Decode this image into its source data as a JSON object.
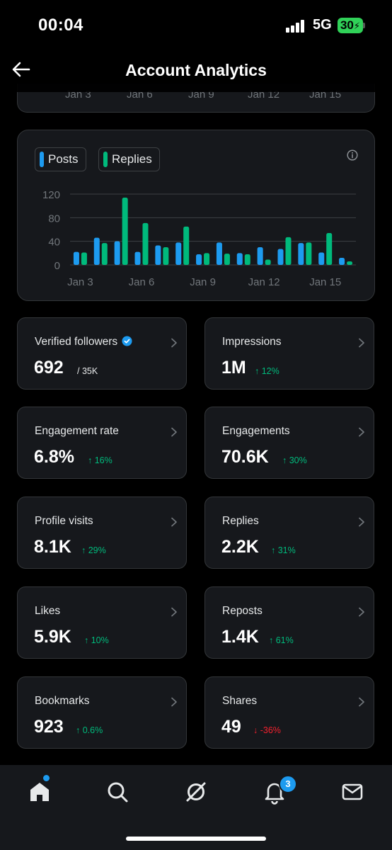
{
  "status_bar": {
    "time": "00:04",
    "network": "5G",
    "battery": "30"
  },
  "header": {
    "title": "Account Analytics"
  },
  "top_chart_axis": [
    "Jan 3",
    "Jan 6",
    "Jan 9",
    "Jan 12",
    "Jan 15"
  ],
  "legend": {
    "posts": "Posts",
    "replies": "Replies"
  },
  "colors": {
    "posts": "#1d9bf0",
    "replies": "#00ba7c",
    "up": "#00ba7c",
    "down": "#f4212e",
    "accent": "#1d9bf0"
  },
  "chart_data": {
    "type": "bar",
    "categories": [
      "Jan 3",
      "Jan 4",
      "Jan 5",
      "Jan 6",
      "Jan 7",
      "Jan 8",
      "Jan 9",
      "Jan 10",
      "Jan 11",
      "Jan 12",
      "Jan 13",
      "Jan 14",
      "Jan 15",
      "Jan 16"
    ],
    "x_tick_labels": [
      "Jan 3",
      "Jan 6",
      "Jan 9",
      "Jan 12",
      "Jan 15"
    ],
    "y_ticks": [
      0,
      40,
      80,
      120
    ],
    "ylim": [
      0,
      120
    ],
    "series": [
      {
        "name": "Posts",
        "color": "#1d9bf0",
        "values": [
          22,
          46,
          40,
          22,
          33,
          38,
          18,
          38,
          20,
          30,
          27,
          37,
          21,
          12
        ]
      },
      {
        "name": "Replies",
        "color": "#00ba7c",
        "values": [
          21,
          37,
          114,
          71,
          30,
          65,
          20,
          19,
          18,
          9,
          47,
          38,
          54,
          6
        ]
      }
    ],
    "grid": true,
    "legend_position": "top-left"
  },
  "metrics": [
    {
      "label": "Verified followers",
      "value": "692",
      "sub": "/ 35K",
      "sub_type": "neutral",
      "verified": true
    },
    {
      "label": "Impressions",
      "value": "1M",
      "sub": "↑ 12%",
      "sub_type": "up"
    },
    {
      "label": "Engagement rate",
      "value": "6.8%",
      "sub": "↑ 16%",
      "sub_type": "up"
    },
    {
      "label": "Engagements",
      "value": "70.6K",
      "sub": "↑ 30%",
      "sub_type": "up"
    },
    {
      "label": "Profile visits",
      "value": "8.1K",
      "sub": "↑ 29%",
      "sub_type": "up"
    },
    {
      "label": "Replies",
      "value": "2.2K",
      "sub": "↑ 31%",
      "sub_type": "up"
    },
    {
      "label": "Likes",
      "value": "5.9K",
      "sub": "↑ 10%",
      "sub_type": "up"
    },
    {
      "label": "Reposts",
      "value": "1.4K",
      "sub": "↑ 61%",
      "sub_type": "up"
    },
    {
      "label": "Bookmarks",
      "value": "923",
      "sub": "↑ 0.6%",
      "sub_type": "up"
    },
    {
      "label": "Shares",
      "value": "49",
      "sub": "↓ -36%",
      "sub_type": "down"
    }
  ],
  "tab_bar": {
    "notifications_badge": "3"
  }
}
